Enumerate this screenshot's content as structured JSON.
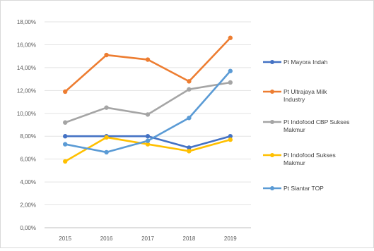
{
  "chart_data": {
    "type": "line",
    "categories": [
      "2015",
      "2016",
      "2017",
      "2018",
      "2019"
    ],
    "ylim": [
      0,
      18
    ],
    "y_tick_labels": [
      "0,00%",
      "2,00%",
      "4,00%",
      "6,00%",
      "8,00%",
      "10,00%",
      "12,00%",
      "14,00%",
      "16,00%",
      "18,00%"
    ],
    "grid": true,
    "legend_position": "right",
    "series": [
      {
        "name": "Pt Mayora Indah",
        "color": "#4472C4",
        "values": [
          8.0,
          8.0,
          8.0,
          7.0,
          8.0
        ]
      },
      {
        "name": "Pt Ultrajaya Milk Industry",
        "color": "#ED7D31",
        "values": [
          11.9,
          15.1,
          14.7,
          12.8,
          16.6
        ]
      },
      {
        "name": "Pt Indofood CBP Sukses Makmur",
        "color": "#A5A5A5",
        "values": [
          9.2,
          10.5,
          9.9,
          12.1,
          12.7
        ]
      },
      {
        "name": "Pt Indofood Sukses Makmur",
        "color": "#FFC000",
        "values": [
          5.8,
          7.9,
          7.3,
          6.7,
          7.7
        ]
      },
      {
        "name": "Pt Siantar TOP",
        "color": "#5B9BD5",
        "values": [
          7.3,
          6.6,
          7.6,
          9.6,
          13.7
        ]
      }
    ]
  }
}
